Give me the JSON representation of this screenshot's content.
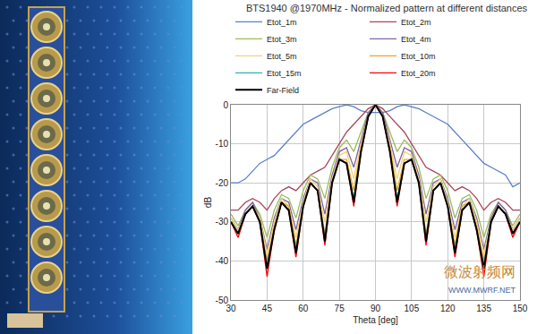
{
  "chart_data": {
    "type": "line",
    "title": "BTS1940 @1970MHz - Normalized pattern at different distances",
    "x_label": "Theta [deg]",
    "y_label": "dB",
    "x": [
      30,
      33,
      36,
      39,
      42,
      45,
      48,
      51,
      54,
      57,
      60,
      63,
      66,
      69,
      72,
      75,
      78,
      81,
      84,
      87,
      90,
      93,
      96,
      99,
      102,
      105,
      108,
      111,
      114,
      117,
      120,
      123,
      126,
      129,
      132,
      135,
      138,
      141,
      144,
      147,
      150
    ],
    "series": [
      {
        "name": "Etot_1m",
        "color": "#5b80c8",
        "values": [
          -20,
          -20,
          -19,
          -17,
          -15,
          -14,
          -13,
          -11,
          -9,
          -7,
          -5,
          -4,
          -3,
          -2,
          -1,
          -0.5,
          0,
          -0.5,
          -1.5,
          -2,
          -2,
          -2,
          -1.5,
          -0.5,
          0,
          -0.5,
          -1,
          -2,
          -3,
          -4,
          -5,
          -7,
          -9,
          -11,
          -13,
          -15,
          -16,
          -17,
          -18,
          -21,
          -20
        ]
      },
      {
        "name": "Etot_2m",
        "color": "#a8455a",
        "values": [
          -27,
          -27,
          -25,
          -24,
          -25,
          -27,
          -24,
          -22,
          -21,
          -22,
          -20,
          -18,
          -17,
          -16,
          -13,
          -10,
          -7,
          -5,
          -3,
          -1,
          0,
          -1,
          -3,
          -5,
          -7,
          -10,
          -13,
          -16,
          -17,
          -18,
          -20,
          -22,
          -21,
          -22,
          -24,
          -27,
          -25,
          -24,
          -25,
          -27,
          -27
        ]
      },
      {
        "name": "Etot_3m",
        "color": "#9bbb59",
        "values": [
          -28,
          -31,
          -27,
          -25,
          -28,
          -34,
          -27,
          -23,
          -24,
          -29,
          -22,
          -18,
          -19,
          -24,
          -16,
          -11,
          -9,
          -12,
          -7,
          -2,
          0,
          -2,
          -7,
          -12,
          -9,
          -11,
          -16,
          -24,
          -19,
          -18,
          -22,
          -29,
          -24,
          -23,
          -27,
          -34,
          -28,
          -25,
          -27,
          -31,
          -28
        ]
      },
      {
        "name": "Etot_4m",
        "color": "#8064a2",
        "values": [
          -29,
          -32,
          -27,
          -25,
          -29,
          -37,
          -29,
          -24,
          -25,
          -32,
          -24,
          -19,
          -20,
          -28,
          -18,
          -12,
          -11,
          -16,
          -9,
          -2,
          0,
          -2,
          -9,
          -16,
          -11,
          -12,
          -18,
          -28,
          -20,
          -19,
          -24,
          -32,
          -25,
          -24,
          -29,
          -37,
          -29,
          -25,
          -27,
          -32,
          -29
        ]
      },
      {
        "name": "Etot_5m",
        "color": "#f2d27a",
        "values": [
          -29,
          -32,
          -28,
          -26,
          -29,
          -38,
          -30,
          -24,
          -26,
          -34,
          -25,
          -19,
          -21,
          -30,
          -19,
          -13,
          -12,
          -19,
          -10,
          -3,
          0,
          -3,
          -10,
          -19,
          -12,
          -13,
          -19,
          -30,
          -21,
          -19,
          -25,
          -34,
          -26,
          -24,
          -30,
          -38,
          -30,
          -26,
          -28,
          -32,
          -29
        ]
      },
      {
        "name": "Etot_10m",
        "color": "#e8a820",
        "values": [
          -30,
          -33,
          -28,
          -26,
          -30,
          -40,
          -31,
          -25,
          -26,
          -36,
          -26,
          -20,
          -22,
          -33,
          -20,
          -14,
          -14,
          -22,
          -11,
          -3,
          0,
          -3,
          -11,
          -22,
          -14,
          -14,
          -20,
          -33,
          -22,
          -20,
          -26,
          -36,
          -26,
          -25,
          -31,
          -40,
          -30,
          -26,
          -28,
          -33,
          -30
        ]
      },
      {
        "name": "Etot_15m",
        "color": "#2fb2b2",
        "values": [
          -30,
          -33,
          -28,
          -26,
          -30,
          -41,
          -32,
          -25,
          -27,
          -37,
          -26,
          -20,
          -22,
          -34,
          -20,
          -14,
          -15,
          -24,
          -12,
          -3,
          0,
          -3,
          -12,
          -24,
          -15,
          -14,
          -20,
          -34,
          -22,
          -20,
          -26,
          -37,
          -27,
          -25,
          -32,
          -41,
          -30,
          -26,
          -28,
          -33,
          -30
        ]
      },
      {
        "name": "Etot_20m",
        "color": "#ff0000",
        "values": [
          -30,
          -34,
          -28,
          -26,
          -30,
          -44,
          -32,
          -25,
          -27,
          -39,
          -26,
          -20,
          -22,
          -36,
          -20,
          -14,
          -15,
          -26,
          -12,
          -3,
          0,
          -3,
          -12,
          -26,
          -15,
          -14,
          -20,
          -36,
          -22,
          -20,
          -26,
          -39,
          -27,
          -25,
          -32,
          -44,
          -30,
          -26,
          -28,
          -34,
          -30
        ]
      },
      {
        "name": "Far-Field",
        "color": "#000000",
        "values": [
          -30,
          -33,
          -28,
          -26,
          -30,
          -42,
          -32,
          -25,
          -27,
          -38,
          -26,
          -20,
          -22,
          -35,
          -20,
          -14,
          -15,
          -25,
          -12,
          -3,
          0,
          -3,
          -12,
          -25,
          -15,
          -14,
          -20,
          -35,
          -22,
          -20,
          -26,
          -38,
          -27,
          -25,
          -32,
          -42,
          -30,
          -26,
          -28,
          -33,
          -30
        ]
      }
    ],
    "xlim": [
      30,
      150
    ],
    "ylim": [
      -50,
      0
    ],
    "xticks": [
      30,
      45,
      60,
      75,
      90,
      105,
      120,
      135,
      150
    ],
    "yticks": [
      -50,
      -40,
      -30,
      -20,
      -10,
      0
    ],
    "grid": true,
    "legend": "top",
    "annotations": [
      "微波射频网",
      "WWW.MWRF.NET"
    ]
  }
}
